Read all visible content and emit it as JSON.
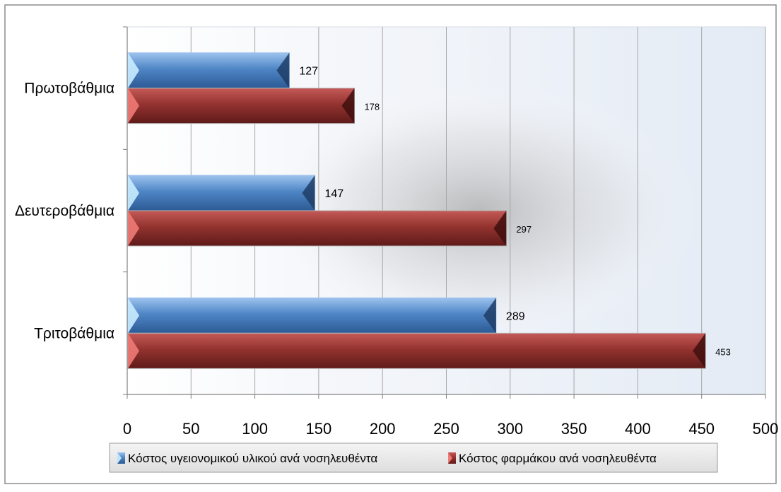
{
  "chart_data": {
    "type": "bar",
    "orientation": "horizontal",
    "categories": [
      "Πρωτοβάθμια",
      "Δευτεροβάθμια",
      "Τριτοβάθμια"
    ],
    "series": [
      {
        "name": "Κόστος υγειονομικού υλικού ανά νοσηλευθέντα",
        "values": [
          127,
          147,
          289
        ],
        "color": "#4a7fc1"
      },
      {
        "name": "Κόστος φαρμάκου ανά νοσηλευθέντα",
        "values": [
          178,
          297,
          453
        ],
        "color": "#963634"
      }
    ],
    "x_ticks": [
      0,
      50,
      100,
      150,
      200,
      250,
      300,
      350,
      400,
      450,
      500
    ],
    "xlim": [
      0,
      500
    ],
    "grid": "vertical",
    "legend_position": "bottom",
    "title": "",
    "xlabel": "",
    "ylabel": ""
  }
}
